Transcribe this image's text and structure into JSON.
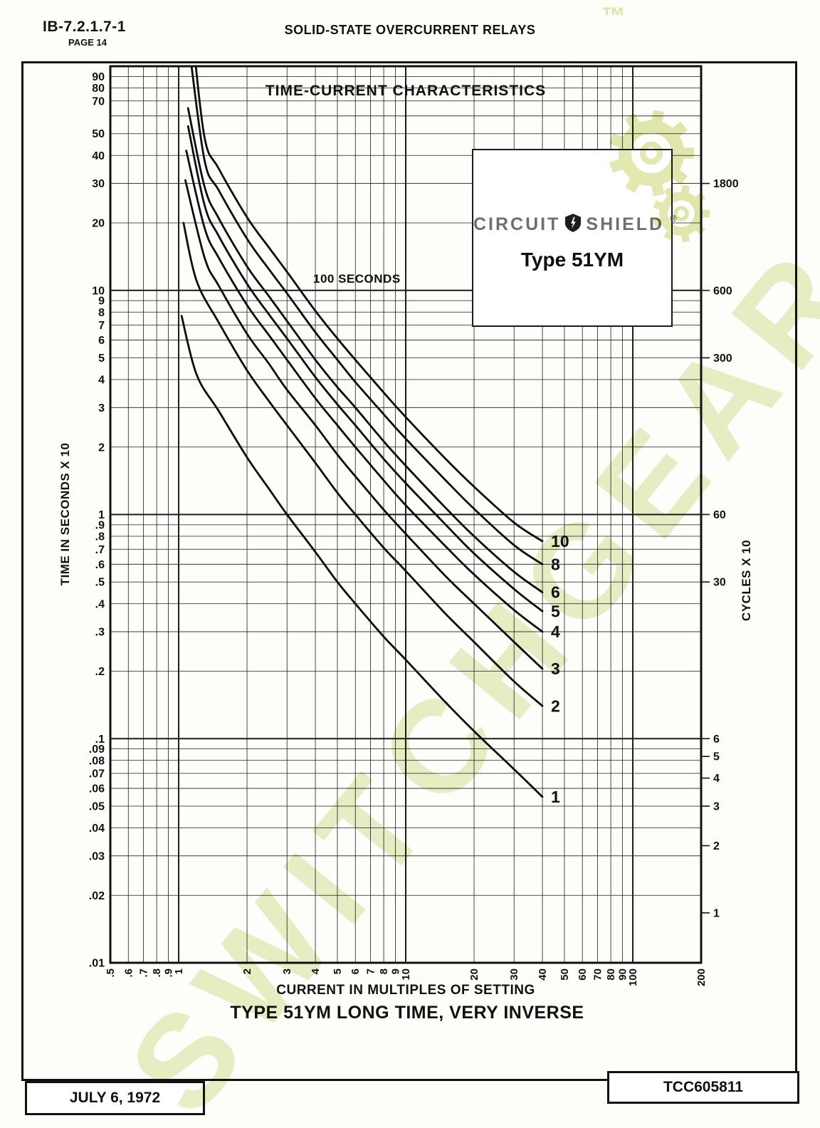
{
  "page": {
    "doc_number": "IB-7.2.1.7-1",
    "page_label": "PAGE 14",
    "header_title": "SOLID-STATE OVERCURRENT RELAYS",
    "footer_date": "JULY 6, 1972",
    "footer_code": "TCC605811"
  },
  "chart": {
    "title": "TIME-CURRENT CHARACTERISTICS",
    "annotation": "100 SECONDS",
    "left_axis_title": "TIME IN SECONDS X 10",
    "right_axis_title": "CYCLES X 10",
    "x_axis_title": "CURRENT IN MULTIPLES OF SETTING",
    "caption": "TYPE 51YM LONG TIME, VERY INVERSE"
  },
  "logo_box": {
    "brand_left": "CIRCUIT",
    "brand_right": "SHIELD",
    "registered": "®",
    "model": "Type 51YM"
  },
  "watermark": {
    "text": "SWITCHGEAR",
    "trademark": "™",
    "color": "#d6de8d"
  },
  "chart_data": {
    "type": "line",
    "title": "TIME-CURRENT CHARACTERISTICS",
    "xlabel": "CURRENT IN MULTIPLES OF SETTING",
    "ylabel": "TIME IN SECONDS X 10",
    "ylabel_right": "CYCLES X 10",
    "x_scale": "log",
    "y_scale": "log",
    "grid": true,
    "xlim": [
      0.5,
      200
    ],
    "ylim": [
      0.01,
      100
    ],
    "annotation": "100 SECONDS",
    "x_ticks": [
      {
        "label": ".5",
        "v": 0.5
      },
      {
        "label": ".6",
        "v": 0.6
      },
      {
        "label": ".7",
        "v": 0.7
      },
      {
        "label": ".8",
        "v": 0.8
      },
      {
        "label": ".9",
        "v": 0.9
      },
      {
        "label": "1",
        "v": 1
      },
      {
        "label": "2",
        "v": 2
      },
      {
        "label": "3",
        "v": 3
      },
      {
        "label": "4",
        "v": 4
      },
      {
        "label": "5",
        "v": 5
      },
      {
        "label": "6",
        "v": 6
      },
      {
        "label": "7",
        "v": 7
      },
      {
        "label": "8",
        "v": 8
      },
      {
        "label": "9",
        "v": 9
      },
      {
        "label": "10",
        "v": 10
      },
      {
        "label": "20",
        "v": 20
      },
      {
        "label": "30",
        "v": 30
      },
      {
        "label": "40",
        "v": 40
      },
      {
        "label": "50",
        "v": 50
      },
      {
        "label": "60",
        "v": 60
      },
      {
        "label": "70",
        "v": 70
      },
      {
        "label": "80",
        "v": 80
      },
      {
        "label": "90",
        "v": 90
      },
      {
        "label": "100",
        "v": 100
      },
      {
        "label": "200",
        "v": 200
      }
    ],
    "y_ticks_left": [
      {
        "label": "90",
        "v": 90
      },
      {
        "label": "80",
        "v": 80
      },
      {
        "label": "70",
        "v": 70
      },
      {
        "label": "50",
        "v": 50
      },
      {
        "label": "40",
        "v": 40
      },
      {
        "label": "30",
        "v": 30
      },
      {
        "label": "20",
        "v": 20
      },
      {
        "label": "10",
        "v": 10
      },
      {
        "label": "9",
        "v": 9
      },
      {
        "label": "8",
        "v": 8
      },
      {
        "label": "7",
        "v": 7
      },
      {
        "label": "6",
        "v": 6
      },
      {
        "label": "5",
        "v": 5
      },
      {
        "label": "4",
        "v": 4
      },
      {
        "label": "3",
        "v": 3
      },
      {
        "label": "2",
        "v": 2
      },
      {
        "label": "1",
        "v": 1
      },
      {
        "label": ".9",
        "v": 0.9
      },
      {
        "label": ".8",
        "v": 0.8
      },
      {
        "label": ".7",
        "v": 0.7
      },
      {
        "label": ".6",
        "v": 0.6
      },
      {
        "label": ".5",
        "v": 0.5
      },
      {
        "label": ".4",
        "v": 0.4
      },
      {
        "label": ".3",
        "v": 0.3
      },
      {
        "label": ".2",
        "v": 0.2
      },
      {
        "label": ".1",
        "v": 0.1
      },
      {
        "label": ".09",
        "v": 0.09
      },
      {
        "label": ".08",
        "v": 0.08
      },
      {
        "label": ".07",
        "v": 0.07
      },
      {
        "label": ".06",
        "v": 0.06
      },
      {
        "label": ".05",
        "v": 0.05
      },
      {
        "label": ".04",
        "v": 0.04
      },
      {
        "label": ".03",
        "v": 0.03
      },
      {
        "label": ".02",
        "v": 0.02
      },
      {
        "label": ".01",
        "v": 0.01
      }
    ],
    "y_ticks_right": [
      {
        "label": "1800",
        "v": 30
      },
      {
        "label": "600",
        "v": 10
      },
      {
        "label": "300",
        "v": 5
      },
      {
        "label": "60",
        "v": 1
      },
      {
        "label": "30",
        "v": 0.5
      },
      {
        "label": "6",
        "v": 0.1
      },
      {
        "label": "5",
        "v": 0.0833
      },
      {
        "label": "4",
        "v": 0.0667
      },
      {
        "label": "3",
        "v": 0.05
      },
      {
        "label": "2",
        "v": 0.0333
      },
      {
        "label": "1",
        "v": 0.0167
      }
    ],
    "series": [
      {
        "name": "1",
        "points": [
          [
            1.03,
            7.7
          ],
          [
            1.2,
            4.2
          ],
          [
            1.5,
            2.9
          ],
          [
            2,
            1.8
          ],
          [
            2.5,
            1.3
          ],
          [
            3,
            1.0
          ],
          [
            4,
            0.68
          ],
          [
            5,
            0.5
          ],
          [
            6,
            0.4
          ],
          [
            8,
            0.285
          ],
          [
            10,
            0.225
          ],
          [
            15,
            0.145
          ],
          [
            20,
            0.108
          ],
          [
            30,
            0.073
          ],
          [
            40,
            0.055
          ]
        ]
      },
      {
        "name": "2",
        "points": [
          [
            1.05,
            20
          ],
          [
            1.2,
            11
          ],
          [
            1.5,
            7.2
          ],
          [
            2,
            4.4
          ],
          [
            2.5,
            3.2
          ],
          [
            3,
            2.5
          ],
          [
            4,
            1.7
          ],
          [
            5,
            1.25
          ],
          [
            6,
            1.0
          ],
          [
            8,
            0.71
          ],
          [
            10,
            0.56
          ],
          [
            15,
            0.36
          ],
          [
            20,
            0.27
          ],
          [
            30,
            0.18
          ],
          [
            40,
            0.14
          ]
        ]
      },
      {
        "name": "3",
        "points": [
          [
            1.07,
            31
          ],
          [
            1.3,
            14
          ],
          [
            1.5,
            10.5
          ],
          [
            2,
            6.4
          ],
          [
            2.5,
            4.7
          ],
          [
            3,
            3.6
          ],
          [
            4,
            2.5
          ],
          [
            5,
            1.85
          ],
          [
            6,
            1.48
          ],
          [
            8,
            1.05
          ],
          [
            10,
            0.82
          ],
          [
            15,
            0.53
          ],
          [
            20,
            0.4
          ],
          [
            30,
            0.27
          ],
          [
            40,
            0.205
          ]
        ]
      },
      {
        "name": "4",
        "points": [
          [
            1.08,
            42
          ],
          [
            1.3,
            19
          ],
          [
            1.5,
            14
          ],
          [
            2,
            8.6
          ],
          [
            2.5,
            6.3
          ],
          [
            3,
            4.9
          ],
          [
            4,
            3.3
          ],
          [
            5,
            2.5
          ],
          [
            6,
            2.0
          ],
          [
            8,
            1.42
          ],
          [
            10,
            1.1
          ],
          [
            15,
            0.72
          ],
          [
            20,
            0.54
          ],
          [
            30,
            0.375
          ],
          [
            40,
            0.3
          ]
        ]
      },
      {
        "name": "5",
        "points": [
          [
            1.1,
            54
          ],
          [
            1.3,
            24
          ],
          [
            1.5,
            17.5
          ],
          [
            2,
            10.7
          ],
          [
            2.5,
            7.8
          ],
          [
            3,
            6.1
          ],
          [
            4,
            4.1
          ],
          [
            5,
            3.1
          ],
          [
            6,
            2.5
          ],
          [
            8,
            1.77
          ],
          [
            10,
            1.38
          ],
          [
            15,
            0.9
          ],
          [
            20,
            0.67
          ],
          [
            30,
            0.465
          ],
          [
            40,
            0.37
          ]
        ]
      },
      {
        "name": "6",
        "points": [
          [
            1.1,
            65
          ],
          [
            1.3,
            29
          ],
          [
            1.5,
            21
          ],
          [
            2,
            12.8
          ],
          [
            2.5,
            9.4
          ],
          [
            3,
            7.3
          ],
          [
            4,
            4.9
          ],
          [
            5,
            3.7
          ],
          [
            6,
            3.0
          ],
          [
            8,
            2.12
          ],
          [
            10,
            1.65
          ],
          [
            15,
            1.07
          ],
          [
            20,
            0.8
          ],
          [
            30,
            0.555
          ],
          [
            40,
            0.45
          ]
        ]
      },
      {
        "name": "8",
        "points": [
          [
            1.12,
            115
          ],
          [
            1.3,
            38
          ],
          [
            1.5,
            28
          ],
          [
            2,
            17
          ],
          [
            2.5,
            12.4
          ],
          [
            3,
            9.7
          ],
          [
            4,
            6.5
          ],
          [
            5,
            4.9
          ],
          [
            6,
            3.9
          ],
          [
            8,
            2.8
          ],
          [
            10,
            2.18
          ],
          [
            15,
            1.42
          ],
          [
            20,
            1.06
          ],
          [
            30,
            0.73
          ],
          [
            40,
            0.6
          ]
        ]
      },
      {
        "name": "10",
        "points": [
          [
            1.15,
            140
          ],
          [
            1.3,
            48
          ],
          [
            1.5,
            35
          ],
          [
            2,
            21.2
          ],
          [
            2.5,
            15.5
          ],
          [
            3,
            12.1
          ],
          [
            4,
            8.1
          ],
          [
            5,
            6.1
          ],
          [
            6,
            4.9
          ],
          [
            8,
            3.5
          ],
          [
            10,
            2.72
          ],
          [
            15,
            1.77
          ],
          [
            20,
            1.33
          ],
          [
            30,
            0.92
          ],
          [
            40,
            0.76
          ]
        ]
      }
    ]
  }
}
